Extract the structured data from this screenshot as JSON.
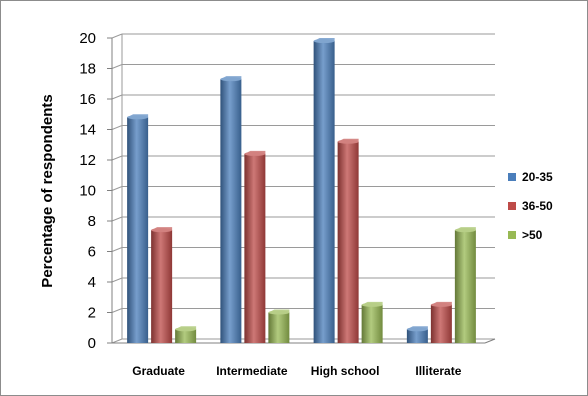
{
  "chart_data": {
    "type": "bar",
    "categories": [
      "Graduate",
      "Intermediate",
      "High school",
      "Illiterate"
    ],
    "series": [
      {
        "name": "20-35",
        "values": [
          14.8,
          17.3,
          19.8,
          0.9
        ],
        "color": "#4a7ebb"
      },
      {
        "name": "36-50",
        "values": [
          7.4,
          12.4,
          13.2,
          2.5
        ],
        "color": "#be4b48"
      },
      {
        "name": ">50",
        "values": [
          0.9,
          2.0,
          2.5,
          7.4
        ],
        "color": "#98b954"
      }
    ],
    "title": "",
    "xlabel": "",
    "ylabel": "Percentage of respondents",
    "ylim": [
      0,
      20
    ],
    "yticks": [
      0,
      2,
      4,
      6,
      8,
      10,
      12,
      14,
      16,
      18,
      20
    ],
    "grid": true,
    "legend_position": "right",
    "style": "3d-clustered"
  }
}
